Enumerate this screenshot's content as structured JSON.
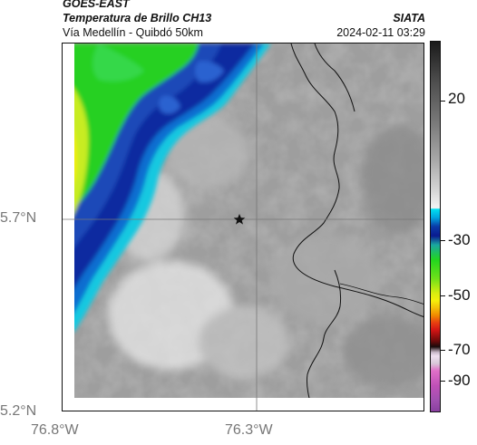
{
  "header": {
    "satellite": "GOES-EAST",
    "product": "Temperatura de Brillo CH13",
    "region": "Vía Medellín - Quibdó 50km",
    "agency": "SIATA",
    "datetime": "2024-02-11 03:29"
  },
  "axes": {
    "y_ticks": [
      "5.7°N",
      "5.2°N"
    ],
    "x_ticks": [
      "76.8°W",
      "76.3°W"
    ]
  },
  "colorbar": {
    "labels": [
      "20",
      "-30",
      "-50",
      "-70",
      "-90"
    ],
    "colors": {
      "warm_top": "#111111",
      "gray_mid": "#9a9a9a",
      "white": "#f2f2f2",
      "cyan": "#00c8e6",
      "blue": "#0a1e9c",
      "green": "#22d61e",
      "yellow": "#f6f00a",
      "orange": "#f08a00",
      "red": "#d21414",
      "dark": "#1a0a0a",
      "pink": "#e070c8",
      "purple": "#a050b0"
    }
  },
  "map": {
    "marker_icon": "star-icon",
    "crosshair": "grid-lines"
  }
}
